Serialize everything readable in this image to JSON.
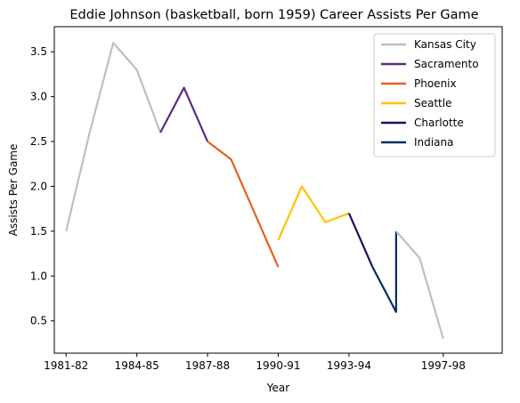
{
  "chart_data": {
    "type": "line",
    "title": "Eddie Johnson (basketball, born 1959) Career Assists Per Game",
    "xlabel": "Year",
    "ylabel": "Assists Per Game",
    "xlim": [
      1980.5,
      1999.5
    ],
    "ylim": [
      0.14,
      3.78
    ],
    "x_ticks": [
      {
        "value": 1981,
        "label": "1981-82"
      },
      {
        "value": 1984,
        "label": "1984-85"
      },
      {
        "value": 1987,
        "label": "1987-88"
      },
      {
        "value": 1990,
        "label": "1990-91"
      },
      {
        "value": 1993,
        "label": "1993-94"
      },
      {
        "value": 1997,
        "label": "1997-98"
      }
    ],
    "y_ticks": [
      {
        "value": 0.5,
        "label": "0.5"
      },
      {
        "value": 1.0,
        "label": "1.0"
      },
      {
        "value": 1.5,
        "label": "1.5"
      },
      {
        "value": 2.0,
        "label": "2.0"
      },
      {
        "value": 2.5,
        "label": "2.5"
      },
      {
        "value": 3.0,
        "label": "3.0"
      },
      {
        "value": 3.5,
        "label": "3.5"
      }
    ],
    "grid": false,
    "legend_position": "top-right",
    "legend": [
      {
        "name": "Kansas City",
        "color": "#bfbfbf"
      },
      {
        "name": "Sacramento",
        "color": "#5a2d81"
      },
      {
        "name": "Phoenix",
        "color": "#e56020"
      },
      {
        "name": "Seattle",
        "color": "#ffc200"
      },
      {
        "name": "Charlotte",
        "color": "#1d1160"
      },
      {
        "name": "Indiana",
        "color": "#002d62"
      }
    ],
    "segments": [
      {
        "name": "Kansas City",
        "color": "#bfbfbf",
        "points": [
          [
            1981,
            1.5
          ],
          [
            1982,
            2.6
          ],
          [
            1983,
            3.6
          ],
          [
            1984,
            3.3
          ],
          [
            1985,
            2.6
          ]
        ]
      },
      {
        "name": "Sacramento",
        "color": "#5a2d81",
        "points": [
          [
            1985,
            2.6
          ],
          [
            1986,
            3.1
          ],
          [
            1987,
            2.5
          ]
        ]
      },
      {
        "name": "Phoenix",
        "color": "#e56020",
        "points": [
          [
            1987,
            2.5
          ],
          [
            1988,
            2.3
          ],
          [
            1989,
            1.7
          ],
          [
            1990,
            1.1
          ]
        ]
      },
      {
        "name": "Seattle",
        "color": "#ffc200",
        "points": [
          [
            1990,
            1.4
          ],
          [
            1991,
            2.0
          ],
          [
            1992,
            1.6
          ],
          [
            1993,
            1.7
          ]
        ]
      },
      {
        "name": "Charlotte",
        "color": "#1d1160",
        "points": [
          [
            1993,
            1.7
          ],
          [
            1994,
            1.1
          ]
        ]
      },
      {
        "name": "Indiana",
        "color": "#002d62",
        "points": [
          [
            1994,
            1.1
          ],
          [
            1995,
            0.6
          ],
          [
            1995,
            1.5
          ]
        ]
      },
      {
        "name": "Kansas City",
        "color": "#bfbfbf",
        "points": [
          [
            1995,
            1.5
          ],
          [
            1996,
            1.2
          ],
          [
            1997,
            0.3
          ]
        ]
      }
    ]
  }
}
